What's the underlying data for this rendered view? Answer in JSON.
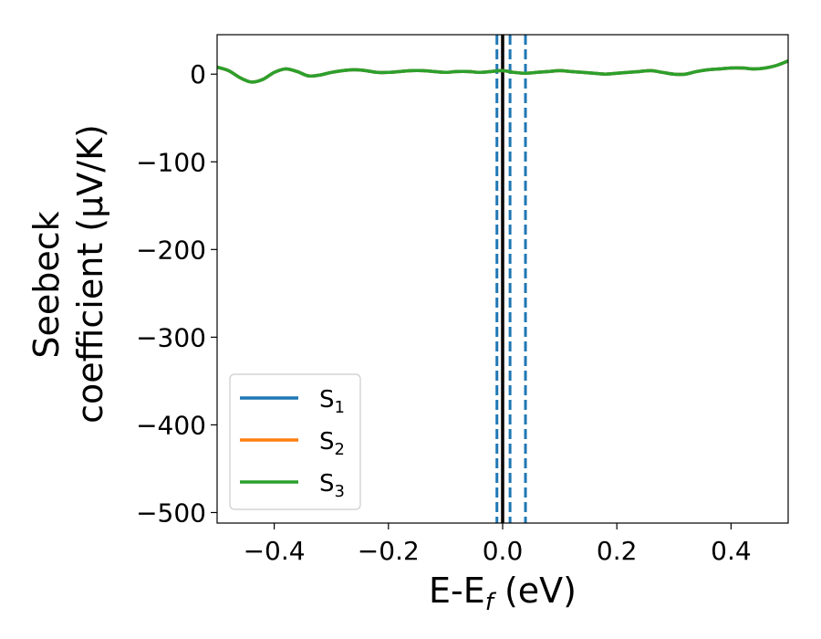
{
  "chart_data": {
    "type": "line",
    "xlabel": "E-E",
    "xlabel_sub": "f",
    "xlabel_unit": " (eV)",
    "ylabel_line1": "Seebeck",
    "ylabel_line2": "coefficient  (μV/K)",
    "xlim": [
      -0.5,
      0.5
    ],
    "ylim": [
      -512,
      45
    ],
    "xticks": [
      -0.4,
      -0.2,
      0.0,
      0.2,
      0.4
    ],
    "xtick_labels": [
      "−0.4",
      "−0.2",
      "0.0",
      "0.2",
      "0.4"
    ],
    "yticks": [
      0,
      -100,
      -200,
      -300,
      -400,
      -500
    ],
    "ytick_labels": [
      "0",
      "−100",
      "−200",
      "−300",
      "−400",
      "−500"
    ],
    "grid": false,
    "legend_position": "lower-left",
    "x": [
      -0.5,
      -0.48,
      -0.46,
      -0.44,
      -0.42,
      -0.4,
      -0.38,
      -0.36,
      -0.34,
      -0.32,
      -0.3,
      -0.28,
      -0.26,
      -0.24,
      -0.22,
      -0.2,
      -0.18,
      -0.16,
      -0.14,
      -0.12,
      -0.1,
      -0.08,
      -0.06,
      -0.04,
      -0.02,
      0.0,
      0.02,
      0.04,
      0.06,
      0.08,
      0.1,
      0.12,
      0.14,
      0.16,
      0.18,
      0.2,
      0.22,
      0.24,
      0.26,
      0.28,
      0.3,
      0.32,
      0.34,
      0.36,
      0.38,
      0.4,
      0.42,
      0.44,
      0.46,
      0.48,
      0.5
    ],
    "series": [
      {
        "name": "S",
        "name_sub": "1",
        "color": "#1f77b4",
        "values": [
          8,
          4,
          -4,
          -9,
          -6,
          2,
          6,
          3,
          -2,
          -1,
          2,
          4,
          5,
          4,
          2,
          2,
          3,
          4,
          4,
          3,
          2,
          3,
          3,
          2,
          3,
          4,
          2,
          1,
          2,
          3,
          4,
          3,
          2,
          1,
          0,
          1,
          2,
          3,
          4,
          2,
          0,
          0,
          3,
          5,
          6,
          7,
          7,
          6,
          7,
          10,
          15
        ]
      },
      {
        "name": "S",
        "name_sub": "2",
        "color": "#ff7f0e",
        "values": [
          8,
          4,
          -4,
          -9,
          -6,
          2,
          6,
          3,
          -2,
          -1,
          2,
          4,
          5,
          4,
          2,
          2,
          3,
          4,
          4,
          3,
          2,
          3,
          3,
          2,
          3,
          4,
          2,
          1,
          2,
          3,
          4,
          3,
          2,
          1,
          0,
          1,
          2,
          3,
          4,
          2,
          0,
          0,
          3,
          5,
          6,
          7,
          7,
          6,
          7,
          10,
          15
        ]
      },
      {
        "name": "S",
        "name_sub": "3",
        "color": "#2ca02c",
        "values": [
          8,
          4,
          -4,
          -9,
          -6,
          2,
          6,
          3,
          -2,
          -1,
          2,
          4,
          5,
          4,
          2,
          2,
          3,
          4,
          4,
          3,
          2,
          3,
          3,
          2,
          3,
          4,
          2,
          1,
          2,
          3,
          4,
          3,
          2,
          1,
          0,
          1,
          2,
          3,
          4,
          2,
          0,
          0,
          3,
          5,
          6,
          7,
          7,
          6,
          7,
          10,
          15
        ]
      }
    ],
    "vlines": [
      {
        "x": 0.0,
        "color": "#000000",
        "style": "solid"
      },
      {
        "x": -0.01,
        "color": "#1f77b4",
        "style": "dashed"
      },
      {
        "x": 0.013,
        "color": "#1f77b4",
        "style": "dashed"
      },
      {
        "x": 0.04,
        "color": "#1f77b4",
        "style": "dashed"
      }
    ]
  }
}
